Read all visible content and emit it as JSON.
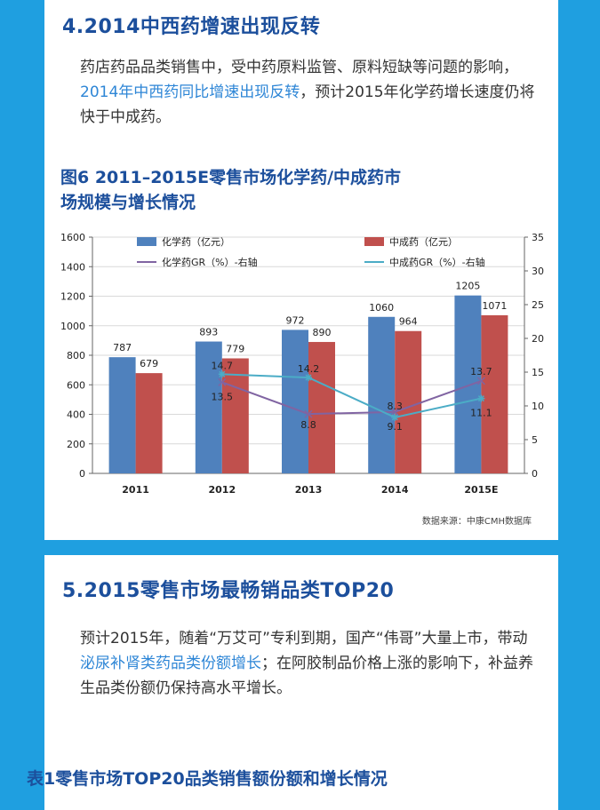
{
  "section4": {
    "title": "4.2014中西药增速出现反转",
    "para_before": "药店药品品类销售中，受中药原料监管、原料短缺等问题的影响，",
    "para_highlight": "2014年中西药同比增速出现反转",
    "para_after": "，预计2015年化学药增长速度仍将快于中成药。"
  },
  "figure": {
    "title_line1": "图6 2011–2015E零售市场化学药/中成药市",
    "title_line2": "场规模与增长情况",
    "source": "数据来源：中康CMH数据库"
  },
  "chart_data": {
    "type": "bar",
    "categories": [
      "2011",
      "2012",
      "2013",
      "2014",
      "2015E"
    ],
    "ylim": [
      0,
      1600
    ],
    "yticks": [
      0,
      200,
      400,
      600,
      800,
      1000,
      1200,
      1400,
      1600
    ],
    "y2lim": [
      0,
      35
    ],
    "y2ticks": [
      0,
      5,
      10,
      15,
      20,
      25,
      30,
      35
    ],
    "legend": [
      "化学药（亿元）",
      "中成药（亿元）",
      "化学药GR（%）-右轴",
      "中成药GR（%）-右轴"
    ],
    "bar_series": [
      {
        "name": "化学药（亿元）",
        "color": "#4f81bd",
        "values": [
          787,
          893,
          972,
          1060,
          1205
        ],
        "labels": [
          "787",
          "893",
          "972",
          "1060",
          "1205"
        ]
      },
      {
        "name": "中成药（亿元）",
        "color": "#c0504d",
        "values": [
          679,
          779,
          890,
          964,
          1071
        ],
        "labels": [
          "679",
          "779",
          "890",
          "964",
          "1071"
        ]
      }
    ],
    "line_series": [
      {
        "name": "化学药GR（%）-右轴",
        "color": "#8064a2",
        "axis": "right",
        "values": [
          null,
          13.5,
          8.8,
          9.1,
          13.7
        ],
        "labels": [
          "",
          "13.5",
          "8.8",
          "9.1",
          "13.7"
        ]
      },
      {
        "name": "中成药GR（%）-右轴",
        "color": "#4bacc6",
        "axis": "right",
        "values": [
          null,
          14.7,
          14.2,
          8.3,
          11.1
        ],
        "labels": [
          "",
          "14.7",
          "14.2",
          "8.3",
          "11.1"
        ]
      }
    ]
  },
  "section5": {
    "title": "5.2015零售市场最畅销品类TOP20",
    "para_before": "预计2015年，随着“万艾可”专利到期，国产“伟哥”大量上市，带动",
    "para_highlight": "泌尿补肾类药品类份额增长",
    "para_after": "；在阿胶制品价格上涨的影响下，补益养生品类份额仍保持高水平增长。"
  },
  "table1": {
    "title": "表1零售市场TOP20品类销售额份额和增长情况"
  }
}
